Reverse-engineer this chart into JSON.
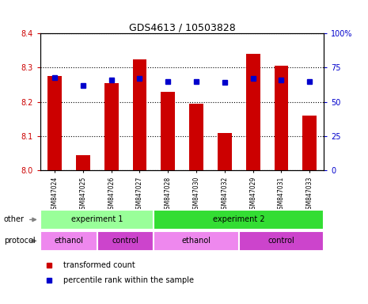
{
  "title": "GDS4613 / 10503828",
  "samples": [
    "GSM847024",
    "GSM847025",
    "GSM847026",
    "GSM847027",
    "GSM847028",
    "GSM847030",
    "GSM847032",
    "GSM847029",
    "GSM847031",
    "GSM847033"
  ],
  "transformed_counts": [
    8.275,
    8.045,
    8.255,
    8.325,
    8.23,
    8.195,
    8.108,
    8.34,
    8.305,
    8.16
  ],
  "percentile_ranks": [
    68,
    62,
    66,
    67,
    65,
    65,
    64,
    67,
    66,
    65
  ],
  "ylim": [
    8.0,
    8.4
  ],
  "yticks_left": [
    8.0,
    8.1,
    8.2,
    8.3,
    8.4
  ],
  "yticks_right": [
    0,
    25,
    50,
    75,
    100
  ],
  "bar_color": "#cc0000",
  "dot_color": "#0000cc",
  "bar_width": 0.5,
  "other_row": [
    {
      "label": "experiment 1",
      "start": 0,
      "end": 4,
      "color": "#99ff99"
    },
    {
      "label": "experiment 2",
      "start": 4,
      "end": 10,
      "color": "#33dd33"
    }
  ],
  "protocol_row": [
    {
      "label": "ethanol",
      "start": 0,
      "end": 2,
      "color": "#ee88ee"
    },
    {
      "label": "control",
      "start": 2,
      "end": 4,
      "color": "#cc44cc"
    },
    {
      "label": "ethanol",
      "start": 4,
      "end": 7,
      "color": "#ee88ee"
    },
    {
      "label": "control",
      "start": 7,
      "end": 10,
      "color": "#cc44cc"
    }
  ],
  "legend_items": [
    {
      "color": "#cc0000",
      "label": "transformed count"
    },
    {
      "color": "#0000cc",
      "label": "percentile rank within the sample"
    }
  ],
  "bg_color": "#ffffff",
  "tick_label_color_left": "#cc0000",
  "tick_label_color_right": "#0000cc"
}
